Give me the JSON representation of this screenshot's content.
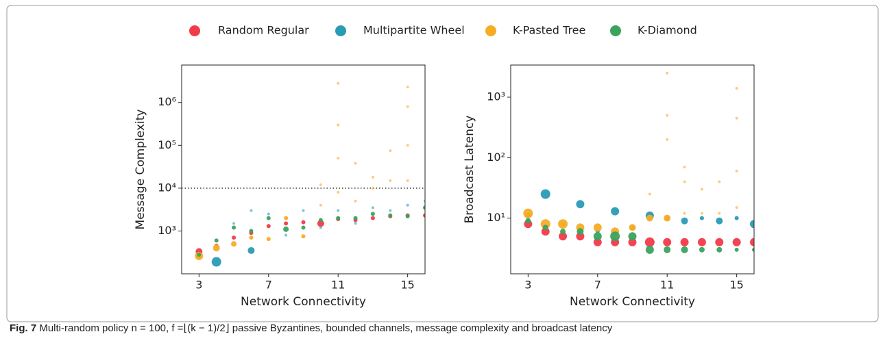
{
  "chart_data": [
    {
      "type": "scatter",
      "ylabel": "Message Complexity",
      "xlabel": "Network Connectivity",
      "xlim": [
        2,
        16
      ],
      "xticks": [
        3,
        7,
        11,
        15
      ],
      "ylim": [
        100,
        7500000
      ],
      "log_y": true,
      "yticks": [
        {
          "value": 1000,
          "label": "10³"
        },
        {
          "value": 10000,
          "label": "10⁴"
        },
        {
          "value": 100000,
          "label": "10⁵"
        },
        {
          "value": 1000000,
          "label": "10⁶"
        }
      ],
      "reference_line": 10000,
      "series": [
        {
          "name": "Random Regular",
          "color": "#f23a4a",
          "x": [
            3,
            4,
            5,
            6,
            7,
            8,
            9,
            10,
            11,
            12,
            13,
            14,
            15,
            16
          ],
          "values": [
            330,
            450,
            700,
            900,
            1300,
            1500,
            1600,
            1500,
            1900,
            1800,
            2000,
            2200,
            2300,
            2300
          ],
          "sizes": [
            5,
            3,
            3,
            3,
            3,
            3,
            3,
            5,
            3,
            3,
            3,
            3,
            3,
            3
          ]
        },
        {
          "name": "Multipartite Wheel",
          "color": "#2a9bb5",
          "x": [
            3,
            4,
            5,
            6,
            6,
            7,
            8,
            9,
            10,
            11,
            12,
            13,
            14,
            15,
            16
          ],
          "values": [
            260,
            190,
            1500,
            350,
            3000,
            2500,
            800,
            3000,
            1200,
            3000,
            1500,
            3500,
            3000,
            4000,
            5000
          ],
          "sizes": [
            3,
            7,
            2,
            5,
            2,
            2,
            2,
            2,
            2,
            2,
            2,
            2,
            2,
            2,
            2
          ]
        },
        {
          "name": "K-Pasted Tree",
          "color": "#f5ad24",
          "x": [
            3,
            4,
            5,
            6,
            7,
            8,
            9,
            10,
            10,
            11,
            11,
            11,
            11,
            12,
            12,
            13,
            13,
            14,
            14,
            15,
            15,
            15,
            15
          ],
          "values": [
            260,
            400,
            500,
            700,
            650,
            2000,
            750,
            4000,
            12000,
            8000,
            50000,
            300000,
            2800000,
            5000,
            38000,
            10000,
            18000,
            15000,
            75000,
            15000,
            100000,
            800000,
            2300000
          ],
          "sizes": [
            6,
            5,
            4,
            3,
            3,
            3,
            3,
            2,
            2,
            2,
            2,
            2,
            2,
            2,
            2,
            2,
            2,
            2,
            2,
            2,
            2,
            2,
            2
          ]
        },
        {
          "name": "K-Diamond",
          "color": "#3aa35e",
          "x": [
            3,
            4,
            5,
            6,
            7,
            8,
            9,
            10,
            11,
            12,
            13,
            14,
            15,
            16
          ],
          "values": [
            280,
            600,
            1200,
            1000,
            2000,
            1100,
            1200,
            1800,
            2000,
            2000,
            2500,
            2300,
            2200,
            3500
          ],
          "sizes": [
            3,
            3,
            3,
            3,
            3,
            4,
            3,
            3,
            3,
            3,
            3,
            3,
            3,
            3
          ]
        }
      ]
    },
    {
      "type": "scatter",
      "ylabel": "Broadcast Latency",
      "xlabel": "Network Connectivity",
      "xlim": [
        2,
        16
      ],
      "xticks": [
        3,
        7,
        11,
        15
      ],
      "ylim": [
        1.2,
        3400
      ],
      "log_y": true,
      "yticks": [
        {
          "value": 10,
          "label": "10¹"
        },
        {
          "value": 100,
          "label": "10²"
        },
        {
          "value": 1000,
          "label": "10³"
        }
      ],
      "series": [
        {
          "color": "#f23a4a",
          "x": [
            3,
            4,
            5,
            6,
            7,
            8,
            9,
            10,
            11,
            12,
            13,
            14,
            15,
            16
          ],
          "values": [
            8,
            6,
            5,
            5,
            4,
            4,
            4,
            4,
            4,
            4,
            4,
            4,
            4,
            4
          ],
          "sizes": [
            6,
            6,
            6,
            6,
            6,
            6,
            6,
            7,
            6,
            6,
            6,
            6,
            6,
            6
          ]
        },
        {
          "color": "#2a9bb5",
          "x": [
            3,
            4,
            5,
            6,
            7,
            8,
            9,
            10,
            11,
            12,
            13,
            14,
            15,
            16
          ],
          "values": [
            11,
            25,
            8,
            17,
            6,
            13,
            7,
            11,
            10,
            9,
            10,
            9,
            10,
            8
          ],
          "sizes": [
            4,
            7,
            3,
            6,
            3,
            6,
            3,
            6,
            3,
            5,
            3,
            5,
            3,
            6
          ]
        },
        {
          "color": "#f5ad24",
          "x": [
            3,
            4,
            5,
            6,
            7,
            8,
            9,
            10,
            10,
            11,
            11,
            11,
            11,
            12,
            12,
            12,
            13,
            13,
            14,
            14,
            15,
            15,
            15,
            15
          ],
          "values": [
            12,
            8,
            8,
            7,
            7,
            6,
            7,
            10,
            25,
            10,
            200,
            500,
            2500,
            12,
            40,
            70,
            12,
            30,
            12,
            40,
            15,
            60,
            450,
            1400
          ],
          "sizes": [
            7,
            7,
            7,
            6,
            6,
            6,
            5,
            5,
            2,
            5,
            2,
            2,
            2,
            2,
            2,
            2,
            2,
            2,
            2,
            2,
            2,
            2,
            2,
            2
          ]
        },
        {
          "color": "#3aa35e",
          "x": [
            3,
            4,
            5,
            6,
            7,
            8,
            9,
            10,
            11,
            12,
            13,
            14,
            15,
            16
          ],
          "values": [
            9,
            7,
            6,
            6,
            5,
            5,
            5,
            3,
            3,
            3,
            3,
            3,
            3,
            3
          ],
          "sizes": [
            4,
            4,
            4,
            5,
            6,
            7,
            6,
            6,
            5,
            5,
            4,
            4,
            3,
            3
          ]
        }
      ]
    }
  ],
  "caption": {
    "label": "Fig. 7",
    "text": "Multi-random policy n = 100, f =⌊(k − 1)/2⌋ passive Byzantines, bounded channels, message complexity and broadcast latency"
  }
}
